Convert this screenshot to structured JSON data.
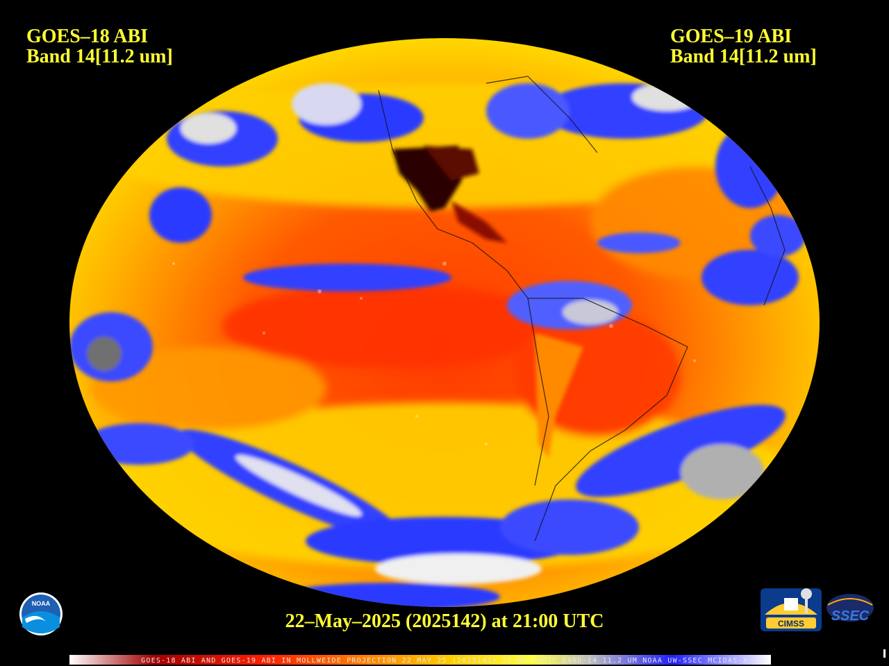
{
  "header_left": {
    "line1": "GOES–18 ABI",
    "line2": "Band 14[11.2 um]"
  },
  "header_right": {
    "line1": "GOES–19 ABI",
    "line2": "Band 14[11.2 um]"
  },
  "date_line": "22–May–2025 (2025142) at 21:00 UTC",
  "footer": "GOES-18 ABI AND GOES-19 ABI IN MOLLWEIDE PROJECTION 22 MAY 25 (2025142) 21:00:20UTC BAND-14 11.2 UM NOAA UW-SSEC MCIDAS-X",
  "logos": {
    "noaa": "NOAA",
    "cimss": "CIMSS",
    "ssec": "SSEC"
  },
  "colors": {
    "text": "#ffff33",
    "cold_clouds": "#1e2ef0",
    "warm_surface": "#ff3300",
    "hot_land": "#2a0000",
    "background": "#000000"
  },
  "colorbar": [
    "#ffffff",
    "#c00000",
    "#ff2000",
    "#ff8000",
    "#ffd000",
    "#ffff40",
    "#c0c0c0",
    "#2020ff",
    "#ffffff"
  ]
}
